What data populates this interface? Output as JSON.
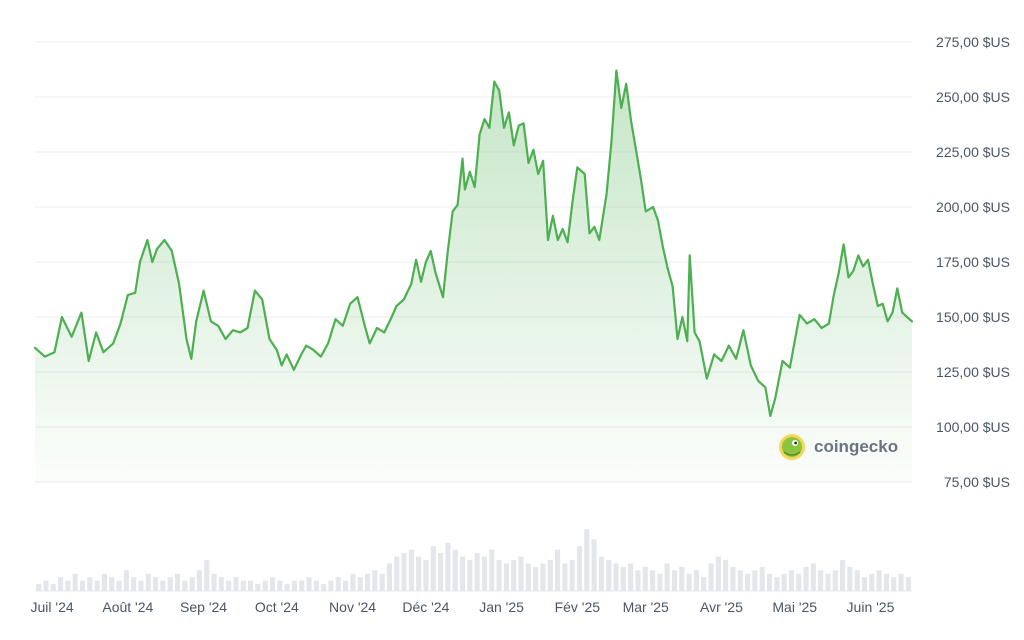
{
  "chart_data": {
    "type": "area",
    "title": "",
    "xlabel": "",
    "ylabel": "",
    "ylim": [
      75,
      275
    ],
    "y_ticks": [
      {
        "value": 275,
        "label": "275,00 $US"
      },
      {
        "value": 250,
        "label": "250,00 $US"
      },
      {
        "value": 225,
        "label": "225,00 $US"
      },
      {
        "value": 200,
        "label": "200,00 $US"
      },
      {
        "value": 175,
        "label": "175,00 $US"
      },
      {
        "value": 150,
        "label": "150,00 $US"
      },
      {
        "value": 125,
        "label": "125,00 $US"
      },
      {
        "value": 100,
        "label": "100,00 $US"
      },
      {
        "value": 75,
        "label": "75,00 $US"
      }
    ],
    "x_ticks": [
      {
        "date": "2024-07-01",
        "label": "Juil '24"
      },
      {
        "date": "2024-08-01",
        "label": "Août '24"
      },
      {
        "date": "2024-09-01",
        "label": "Sep '24"
      },
      {
        "date": "2024-10-01",
        "label": "Oct '24"
      },
      {
        "date": "2024-11-01",
        "label": "Nov '24"
      },
      {
        "date": "2024-12-01",
        "label": "Déc '24"
      },
      {
        "date": "2025-01-01",
        "label": "Jan '25"
      },
      {
        "date": "2025-02-01",
        "label": "Fév '25"
      },
      {
        "date": "2025-03-01",
        "label": "Mar '25"
      },
      {
        "date": "2025-04-01",
        "label": "Avr '25"
      },
      {
        "date": "2025-05-01",
        "label": "Mai '25"
      },
      {
        "date": "2025-06-01",
        "label": "Juin '25"
      }
    ],
    "series": [
      {
        "color": "#4caf50",
        "points": [
          [
            "2024-06-24",
            136
          ],
          [
            "2024-06-28",
            132
          ],
          [
            "2024-07-02",
            134
          ],
          [
            "2024-07-05",
            150
          ],
          [
            "2024-07-09",
            141
          ],
          [
            "2024-07-13",
            152
          ],
          [
            "2024-07-16",
            130
          ],
          [
            "2024-07-19",
            143
          ],
          [
            "2024-07-22",
            134
          ],
          [
            "2024-07-26",
            138
          ],
          [
            "2024-07-29",
            147
          ],
          [
            "2024-08-01",
            160
          ],
          [
            "2024-08-04",
            161
          ],
          [
            "2024-08-06",
            175
          ],
          [
            "2024-08-09",
            185
          ],
          [
            "2024-08-11",
            175
          ],
          [
            "2024-08-13",
            181
          ],
          [
            "2024-08-16",
            185
          ],
          [
            "2024-08-19",
            180
          ],
          [
            "2024-08-22",
            165
          ],
          [
            "2024-08-25",
            140
          ],
          [
            "2024-08-27",
            131
          ],
          [
            "2024-08-29",
            148
          ],
          [
            "2024-09-01",
            162
          ],
          [
            "2024-09-04",
            148
          ],
          [
            "2024-09-07",
            146
          ],
          [
            "2024-09-10",
            140
          ],
          [
            "2024-09-13",
            144
          ],
          [
            "2024-09-16",
            143
          ],
          [
            "2024-09-19",
            145
          ],
          [
            "2024-09-22",
            162
          ],
          [
            "2024-09-25",
            158
          ],
          [
            "2024-09-28",
            140
          ],
          [
            "2024-10-01",
            135
          ],
          [
            "2024-10-03",
            128
          ],
          [
            "2024-10-05",
            133
          ],
          [
            "2024-10-08",
            126
          ],
          [
            "2024-10-11",
            133
          ],
          [
            "2024-10-13",
            137
          ],
          [
            "2024-10-16",
            135
          ],
          [
            "2024-10-19",
            132
          ],
          [
            "2024-10-22",
            138
          ],
          [
            "2024-10-25",
            149
          ],
          [
            "2024-10-28",
            146
          ],
          [
            "2024-10-31",
            156
          ],
          [
            "2024-11-03",
            159
          ],
          [
            "2024-11-06",
            146
          ],
          [
            "2024-11-08",
            138
          ],
          [
            "2024-11-11",
            145
          ],
          [
            "2024-11-14",
            143
          ],
          [
            "2024-11-17",
            150
          ],
          [
            "2024-11-19",
            155
          ],
          [
            "2024-11-22",
            158
          ],
          [
            "2024-11-25",
            165
          ],
          [
            "2024-11-27",
            176
          ],
          [
            "2024-11-29",
            166
          ],
          [
            "2024-12-01",
            175
          ],
          [
            "2024-12-03",
            180
          ],
          [
            "2024-12-05",
            170
          ],
          [
            "2024-12-08",
            159
          ],
          [
            "2024-12-10",
            180
          ],
          [
            "2024-12-12",
            198
          ],
          [
            "2024-12-14",
            201
          ],
          [
            "2024-12-16",
            222
          ],
          [
            "2024-12-17",
            208
          ],
          [
            "2024-12-19",
            216
          ],
          [
            "2024-12-21",
            209
          ],
          [
            "2024-12-23",
            233
          ],
          [
            "2024-12-25",
            240
          ],
          [
            "2024-12-27",
            236
          ],
          [
            "2024-12-29",
            257
          ],
          [
            "2024-12-31",
            253
          ],
          [
            "2025-01-02",
            236
          ],
          [
            "2025-01-04",
            243
          ],
          [
            "2025-01-06",
            228
          ],
          [
            "2025-01-08",
            237
          ],
          [
            "2025-01-10",
            238
          ],
          [
            "2025-01-12",
            220
          ],
          [
            "2025-01-14",
            226
          ],
          [
            "2025-01-16",
            215
          ],
          [
            "2025-01-18",
            221
          ],
          [
            "2025-01-20",
            185
          ],
          [
            "2025-01-22",
            196
          ],
          [
            "2025-01-24",
            185
          ],
          [
            "2025-01-26",
            190
          ],
          [
            "2025-01-28",
            184
          ],
          [
            "2025-01-30",
            202
          ],
          [
            "2025-02-01",
            218
          ],
          [
            "2025-02-04",
            215
          ],
          [
            "2025-02-06",
            188
          ],
          [
            "2025-02-08",
            191
          ],
          [
            "2025-02-10",
            185
          ],
          [
            "2025-02-13",
            206
          ],
          [
            "2025-02-15",
            230
          ],
          [
            "2025-02-17",
            262
          ],
          [
            "2025-02-19",
            245
          ],
          [
            "2025-02-21",
            256
          ],
          [
            "2025-02-23",
            239
          ],
          [
            "2025-02-25",
            226
          ],
          [
            "2025-02-27",
            213
          ],
          [
            "2025-03-01",
            198
          ],
          [
            "2025-03-04",
            200
          ],
          [
            "2025-03-06",
            194
          ],
          [
            "2025-03-08",
            182
          ],
          [
            "2025-03-10",
            172
          ],
          [
            "2025-03-12",
            164
          ],
          [
            "2025-03-14",
            140
          ],
          [
            "2025-03-16",
            150
          ],
          [
            "2025-03-18",
            139
          ],
          [
            "2025-03-19",
            178
          ],
          [
            "2025-03-21",
            143
          ],
          [
            "2025-03-23",
            139
          ],
          [
            "2025-03-26",
            122
          ],
          [
            "2025-03-29",
            133
          ],
          [
            "2025-04-01",
            130
          ],
          [
            "2025-04-04",
            137
          ],
          [
            "2025-04-07",
            131
          ],
          [
            "2025-04-10",
            144
          ],
          [
            "2025-04-13",
            128
          ],
          [
            "2025-04-16",
            121
          ],
          [
            "2025-04-19",
            118
          ],
          [
            "2025-04-21",
            105
          ],
          [
            "2025-04-23",
            113
          ],
          [
            "2025-04-26",
            130
          ],
          [
            "2025-04-29",
            127
          ],
          [
            "2025-05-01",
            139
          ],
          [
            "2025-05-03",
            151
          ],
          [
            "2025-05-06",
            147
          ],
          [
            "2025-05-09",
            149
          ],
          [
            "2025-05-12",
            145
          ],
          [
            "2025-05-15",
            147
          ],
          [
            "2025-05-17",
            160
          ],
          [
            "2025-05-19",
            170
          ],
          [
            "2025-05-21",
            183
          ],
          [
            "2025-05-23",
            168
          ],
          [
            "2025-05-25",
            171
          ],
          [
            "2025-05-27",
            178
          ],
          [
            "2025-05-29",
            173
          ],
          [
            "2025-05-31",
            176
          ],
          [
            "2025-06-02",
            165
          ],
          [
            "2025-06-04",
            155
          ],
          [
            "2025-06-06",
            156
          ],
          [
            "2025-06-08",
            148
          ],
          [
            "2025-06-10",
            152
          ],
          [
            "2025-06-12",
            163
          ],
          [
            "2025-06-14",
            152
          ],
          [
            "2025-06-16",
            150
          ],
          [
            "2025-06-18",
            148
          ]
        ]
      }
    ],
    "volume": [
      2,
      3,
      2,
      4,
      3,
      5,
      3,
      4,
      3,
      5,
      4,
      3,
      6,
      4,
      3,
      5,
      4,
      3,
      4,
      5,
      3,
      4,
      6,
      9,
      5,
      4,
      3,
      4,
      3,
      3,
      2,
      3,
      4,
      3,
      2,
      3,
      3,
      4,
      3,
      2,
      3,
      4,
      3,
      5,
      4,
      5,
      6,
      5,
      8,
      10,
      11,
      12,
      10,
      9,
      13,
      11,
      14,
      12,
      10,
      9,
      11,
      10,
      12,
      9,
      8,
      9,
      10,
      8,
      7,
      8,
      9,
      12,
      8,
      9,
      13,
      18,
      15,
      10,
      9,
      8,
      7,
      8,
      6,
      7,
      6,
      5,
      8,
      6,
      7,
      5,
      6,
      4,
      8,
      10,
      9,
      7,
      6,
      5,
      6,
      7,
      5,
      4,
      5,
      6,
      5,
      7,
      8,
      6,
      5,
      6,
      9,
      7,
      6,
      4,
      5,
      6,
      5,
      4,
      5,
      4
    ],
    "grid": true,
    "legend": "none"
  },
  "watermark": {
    "text": "coingecko"
  },
  "colors": {
    "line": "#4caf50",
    "fill": "#4caf50",
    "grid": "#eceef1",
    "tick_label": "#4a5568",
    "volume": "#e3e6ea"
  }
}
